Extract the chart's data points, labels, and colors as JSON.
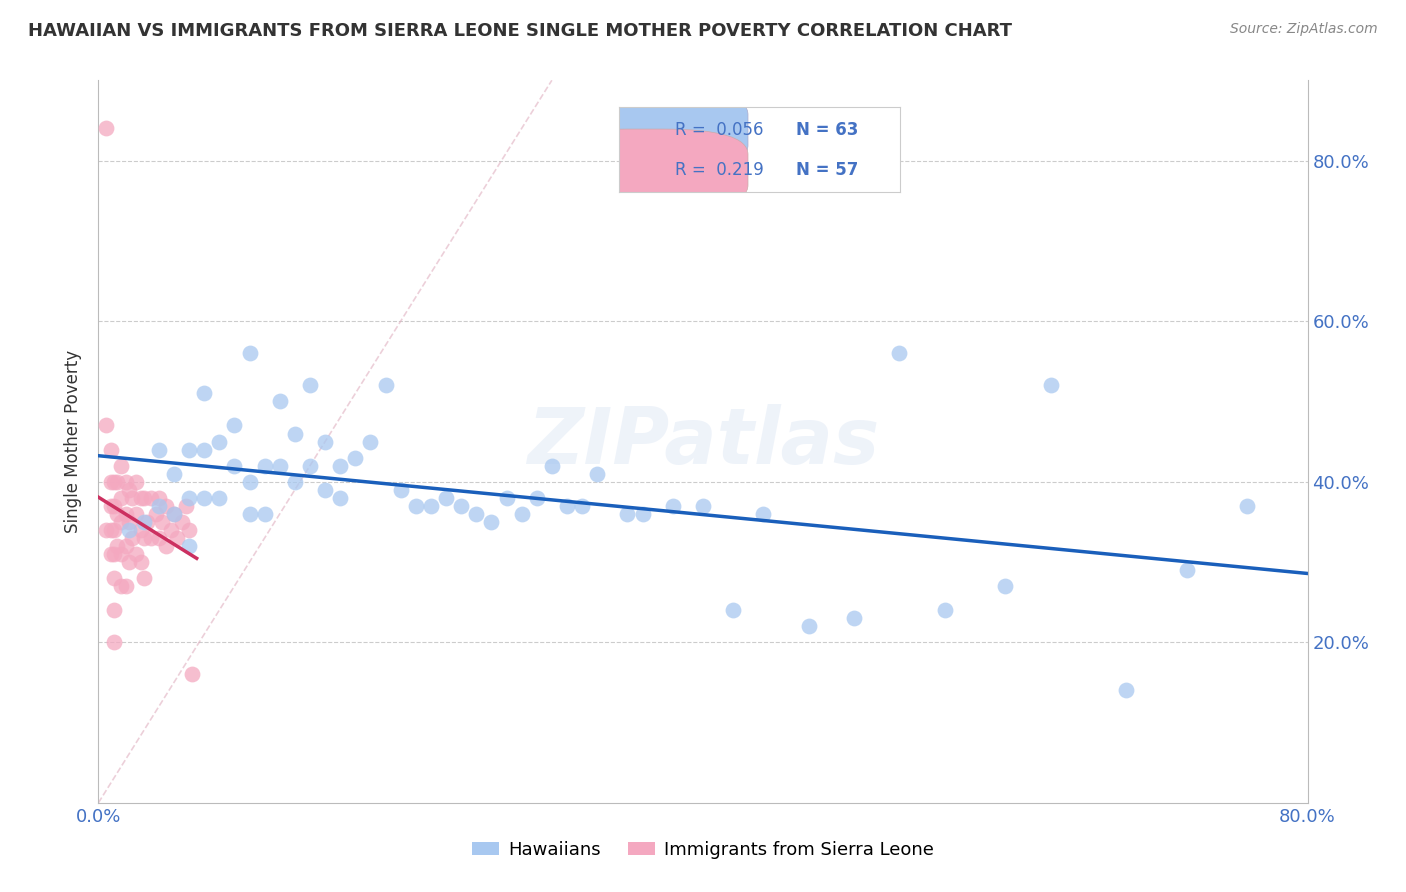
{
  "title": "HAWAIIAN VS IMMIGRANTS FROM SIERRA LEONE SINGLE MOTHER POVERTY CORRELATION CHART",
  "source": "Source: ZipAtlas.com",
  "ylabel": "Single Mother Poverty",
  "xlim": [
    0.0,
    0.8
  ],
  "ylim": [
    0.0,
    0.9
  ],
  "y_ticks": [
    0.2,
    0.4,
    0.6,
    0.8
  ],
  "legend_r1": "0.056",
  "legend_n1": "63",
  "legend_r2": "0.219",
  "legend_n2": "57",
  "color_hawaiian": "#A8C8F0",
  "color_sierra_leone": "#F4A8C0",
  "color_line_hawaiian": "#1A5FBB",
  "color_line_sierra_leone": "#CC3060",
  "color_diag": "#E0B8C8",
  "watermark": "ZIPatlas",
  "hawaiian_x": [
    0.02,
    0.03,
    0.04,
    0.04,
    0.05,
    0.05,
    0.06,
    0.06,
    0.06,
    0.07,
    0.07,
    0.07,
    0.08,
    0.08,
    0.09,
    0.09,
    0.1,
    0.1,
    0.1,
    0.11,
    0.11,
    0.12,
    0.12,
    0.13,
    0.13,
    0.14,
    0.14,
    0.15,
    0.15,
    0.16,
    0.16,
    0.17,
    0.18,
    0.19,
    0.2,
    0.21,
    0.22,
    0.23,
    0.24,
    0.25,
    0.26,
    0.27,
    0.28,
    0.29,
    0.3,
    0.31,
    0.32,
    0.33,
    0.35,
    0.36,
    0.38,
    0.4,
    0.42,
    0.44,
    0.47,
    0.5,
    0.53,
    0.56,
    0.6,
    0.63,
    0.68,
    0.72,
    0.76
  ],
  "hawaiian_y": [
    0.34,
    0.35,
    0.37,
    0.44,
    0.36,
    0.41,
    0.32,
    0.38,
    0.44,
    0.38,
    0.44,
    0.51,
    0.38,
    0.45,
    0.42,
    0.47,
    0.36,
    0.4,
    0.56,
    0.36,
    0.42,
    0.42,
    0.5,
    0.4,
    0.46,
    0.42,
    0.52,
    0.39,
    0.45,
    0.38,
    0.42,
    0.43,
    0.45,
    0.52,
    0.39,
    0.37,
    0.37,
    0.38,
    0.37,
    0.36,
    0.35,
    0.38,
    0.36,
    0.38,
    0.42,
    0.37,
    0.37,
    0.41,
    0.36,
    0.36,
    0.37,
    0.37,
    0.24,
    0.36,
    0.22,
    0.23,
    0.56,
    0.24,
    0.27,
    0.52,
    0.14,
    0.29,
    0.37
  ],
  "sierra_x": [
    0.005,
    0.005,
    0.005,
    0.008,
    0.008,
    0.008,
    0.008,
    0.008,
    0.01,
    0.01,
    0.01,
    0.01,
    0.01,
    0.01,
    0.01,
    0.012,
    0.012,
    0.012,
    0.015,
    0.015,
    0.015,
    0.015,
    0.015,
    0.018,
    0.018,
    0.018,
    0.018,
    0.02,
    0.02,
    0.02,
    0.022,
    0.022,
    0.025,
    0.025,
    0.025,
    0.028,
    0.028,
    0.028,
    0.03,
    0.03,
    0.03,
    0.032,
    0.035,
    0.035,
    0.038,
    0.04,
    0.04,
    0.042,
    0.045,
    0.045,
    0.048,
    0.05,
    0.052,
    0.055,
    0.058,
    0.06,
    0.062
  ],
  "sierra_y": [
    0.84,
    0.47,
    0.34,
    0.44,
    0.4,
    0.37,
    0.34,
    0.31,
    0.4,
    0.37,
    0.34,
    0.31,
    0.28,
    0.24,
    0.2,
    0.4,
    0.36,
    0.32,
    0.42,
    0.38,
    0.35,
    0.31,
    0.27,
    0.4,
    0.36,
    0.32,
    0.27,
    0.39,
    0.35,
    0.3,
    0.38,
    0.33,
    0.4,
    0.36,
    0.31,
    0.38,
    0.34,
    0.3,
    0.38,
    0.33,
    0.28,
    0.35,
    0.38,
    0.33,
    0.36,
    0.38,
    0.33,
    0.35,
    0.37,
    0.32,
    0.34,
    0.36,
    0.33,
    0.35,
    0.37,
    0.34,
    0.16
  ],
  "background_color": "#FFFFFF",
  "grid_color": "#CCCCCC",
  "title_color": "#333333",
  "axis_label_color": "#4472C4"
}
